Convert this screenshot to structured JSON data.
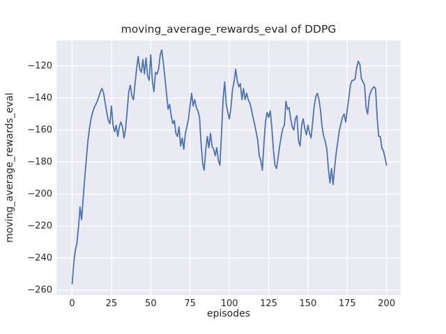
{
  "chart_data": {
    "type": "line",
    "title": "moving_average_rewards_eval of DDPG",
    "xlabel": "episodes",
    "ylabel": "moving_average_rewards_eval",
    "xlim": [
      -10,
      209
    ],
    "ylim": [
      -263,
      -104
    ],
    "grid": true,
    "legend": "none",
    "style": "seaborn-darkgrid",
    "colors": {
      "axes_background": "#eaeaf2",
      "grid": "#ffffff",
      "line": "#4c72b0",
      "text": "#262626"
    },
    "x_ticks": {
      "values": [
        0,
        25,
        50,
        75,
        100,
        125,
        150,
        175,
        200
      ],
      "labels": [
        "0",
        "25",
        "50",
        "75",
        "100",
        "125",
        "150",
        "175",
        "200"
      ]
    },
    "y_ticks": {
      "values": [
        -260,
        -240,
        -220,
        -200,
        -180,
        -160,
        -140,
        -120
      ],
      "labels": [
        "−260",
        "−240",
        "−220",
        "−200",
        "−180",
        "−160",
        "−140",
        "−120"
      ]
    },
    "series": [
      {
        "name": "moving_average_rewards_eval",
        "x_start": 0,
        "x_step": 1,
        "values": [
          -256,
          -243,
          -235,
          -231,
          -221,
          -208,
          -216,
          -203,
          -190,
          -178,
          -167,
          -159,
          -153,
          -149,
          -146,
          -144,
          -142,
          -139,
          -136,
          -134,
          -137,
          -143,
          -149,
          -154,
          -156,
          -145,
          -157,
          -161,
          -157,
          -164,
          -158,
          -155,
          -158,
          -165,
          -159,
          -148,
          -136,
          -132,
          -139,
          -141,
          -131,
          -122,
          -114,
          -122,
          -124,
          -116,
          -125,
          -115,
          -126,
          -129,
          -113,
          -129,
          -136,
          -124,
          -125,
          -122,
          -113,
          -110,
          -118,
          -127,
          -137,
          -147,
          -144,
          -151,
          -156,
          -154,
          -162,
          -164,
          -158,
          -170,
          -165,
          -172,
          -162,
          -158,
          -153,
          -145,
          -137,
          -145,
          -141,
          -146,
          -148,
          -152,
          -168,
          -181,
          -185,
          -172,
          -164,
          -171,
          -162,
          -170,
          -172,
          -176,
          -171,
          -179,
          -182,
          -163,
          -141,
          -130,
          -144,
          -149,
          -153,
          -146,
          -135,
          -130,
          -122,
          -129,
          -133,
          -131,
          -141,
          -134,
          -141,
          -137,
          -141,
          -143,
          -147,
          -152,
          -156,
          -161,
          -166,
          -176,
          -179,
          -185,
          -168,
          -155,
          -149,
          -152,
          -148,
          -158,
          -172,
          -182,
          -184,
          -177,
          -170,
          -164,
          -159,
          -157,
          -142,
          -147,
          -146,
          -153,
          -158,
          -160,
          -153,
          -151,
          -167,
          -170,
          -157,
          -153,
          -159,
          -163,
          -157,
          -162,
          -165,
          -155,
          -145,
          -139,
          -137,
          -141,
          -148,
          -158,
          -164,
          -167,
          -172,
          -184,
          -193,
          -184,
          -194,
          -183,
          -174,
          -167,
          -160,
          -156,
          -152,
          -150,
          -155,
          -147,
          -140,
          -132,
          -129,
          -129,
          -128,
          -121,
          -117,
          -119,
          -128,
          -130,
          -132,
          -146,
          -150,
          -139,
          -136,
          -134,
          -133,
          -134,
          -152,
          -164,
          -164,
          -171,
          -173,
          -177,
          -182
        ]
      }
    ]
  }
}
